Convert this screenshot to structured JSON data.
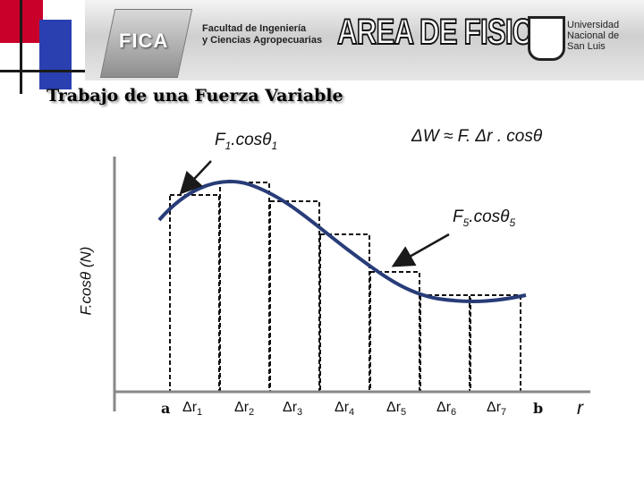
{
  "header": {
    "logo_text": "FICA",
    "faculty": [
      "Facultad de Ingeniería",
      "y Ciencias Agropecuarias"
    ],
    "area": "AREA DE FISICA",
    "university": [
      "Universidad",
      "Nacional de",
      "San Luis"
    ]
  },
  "slide": {
    "title": "Trabajo de una Fuerza Variable"
  },
  "diagram": {
    "y_axis_label": "F.cosθ (N)",
    "x_axis_label": "r",
    "x_start": "a",
    "x_end": "b",
    "intervals": [
      "r1",
      "r2",
      "r3",
      "r4",
      "r5",
      "r6",
      "r7"
    ],
    "interval_prefix": "Δ",
    "label_f1": "F1.cosθ1",
    "label_f5": "F5.cosθ5",
    "label_work": "ΔW ≈ F. Δr . cosθ"
  },
  "colors": {
    "curve": "#283c78",
    "bars": "#111111",
    "arrow": "#1a1a1a",
    "accent": "#c4001a"
  }
}
